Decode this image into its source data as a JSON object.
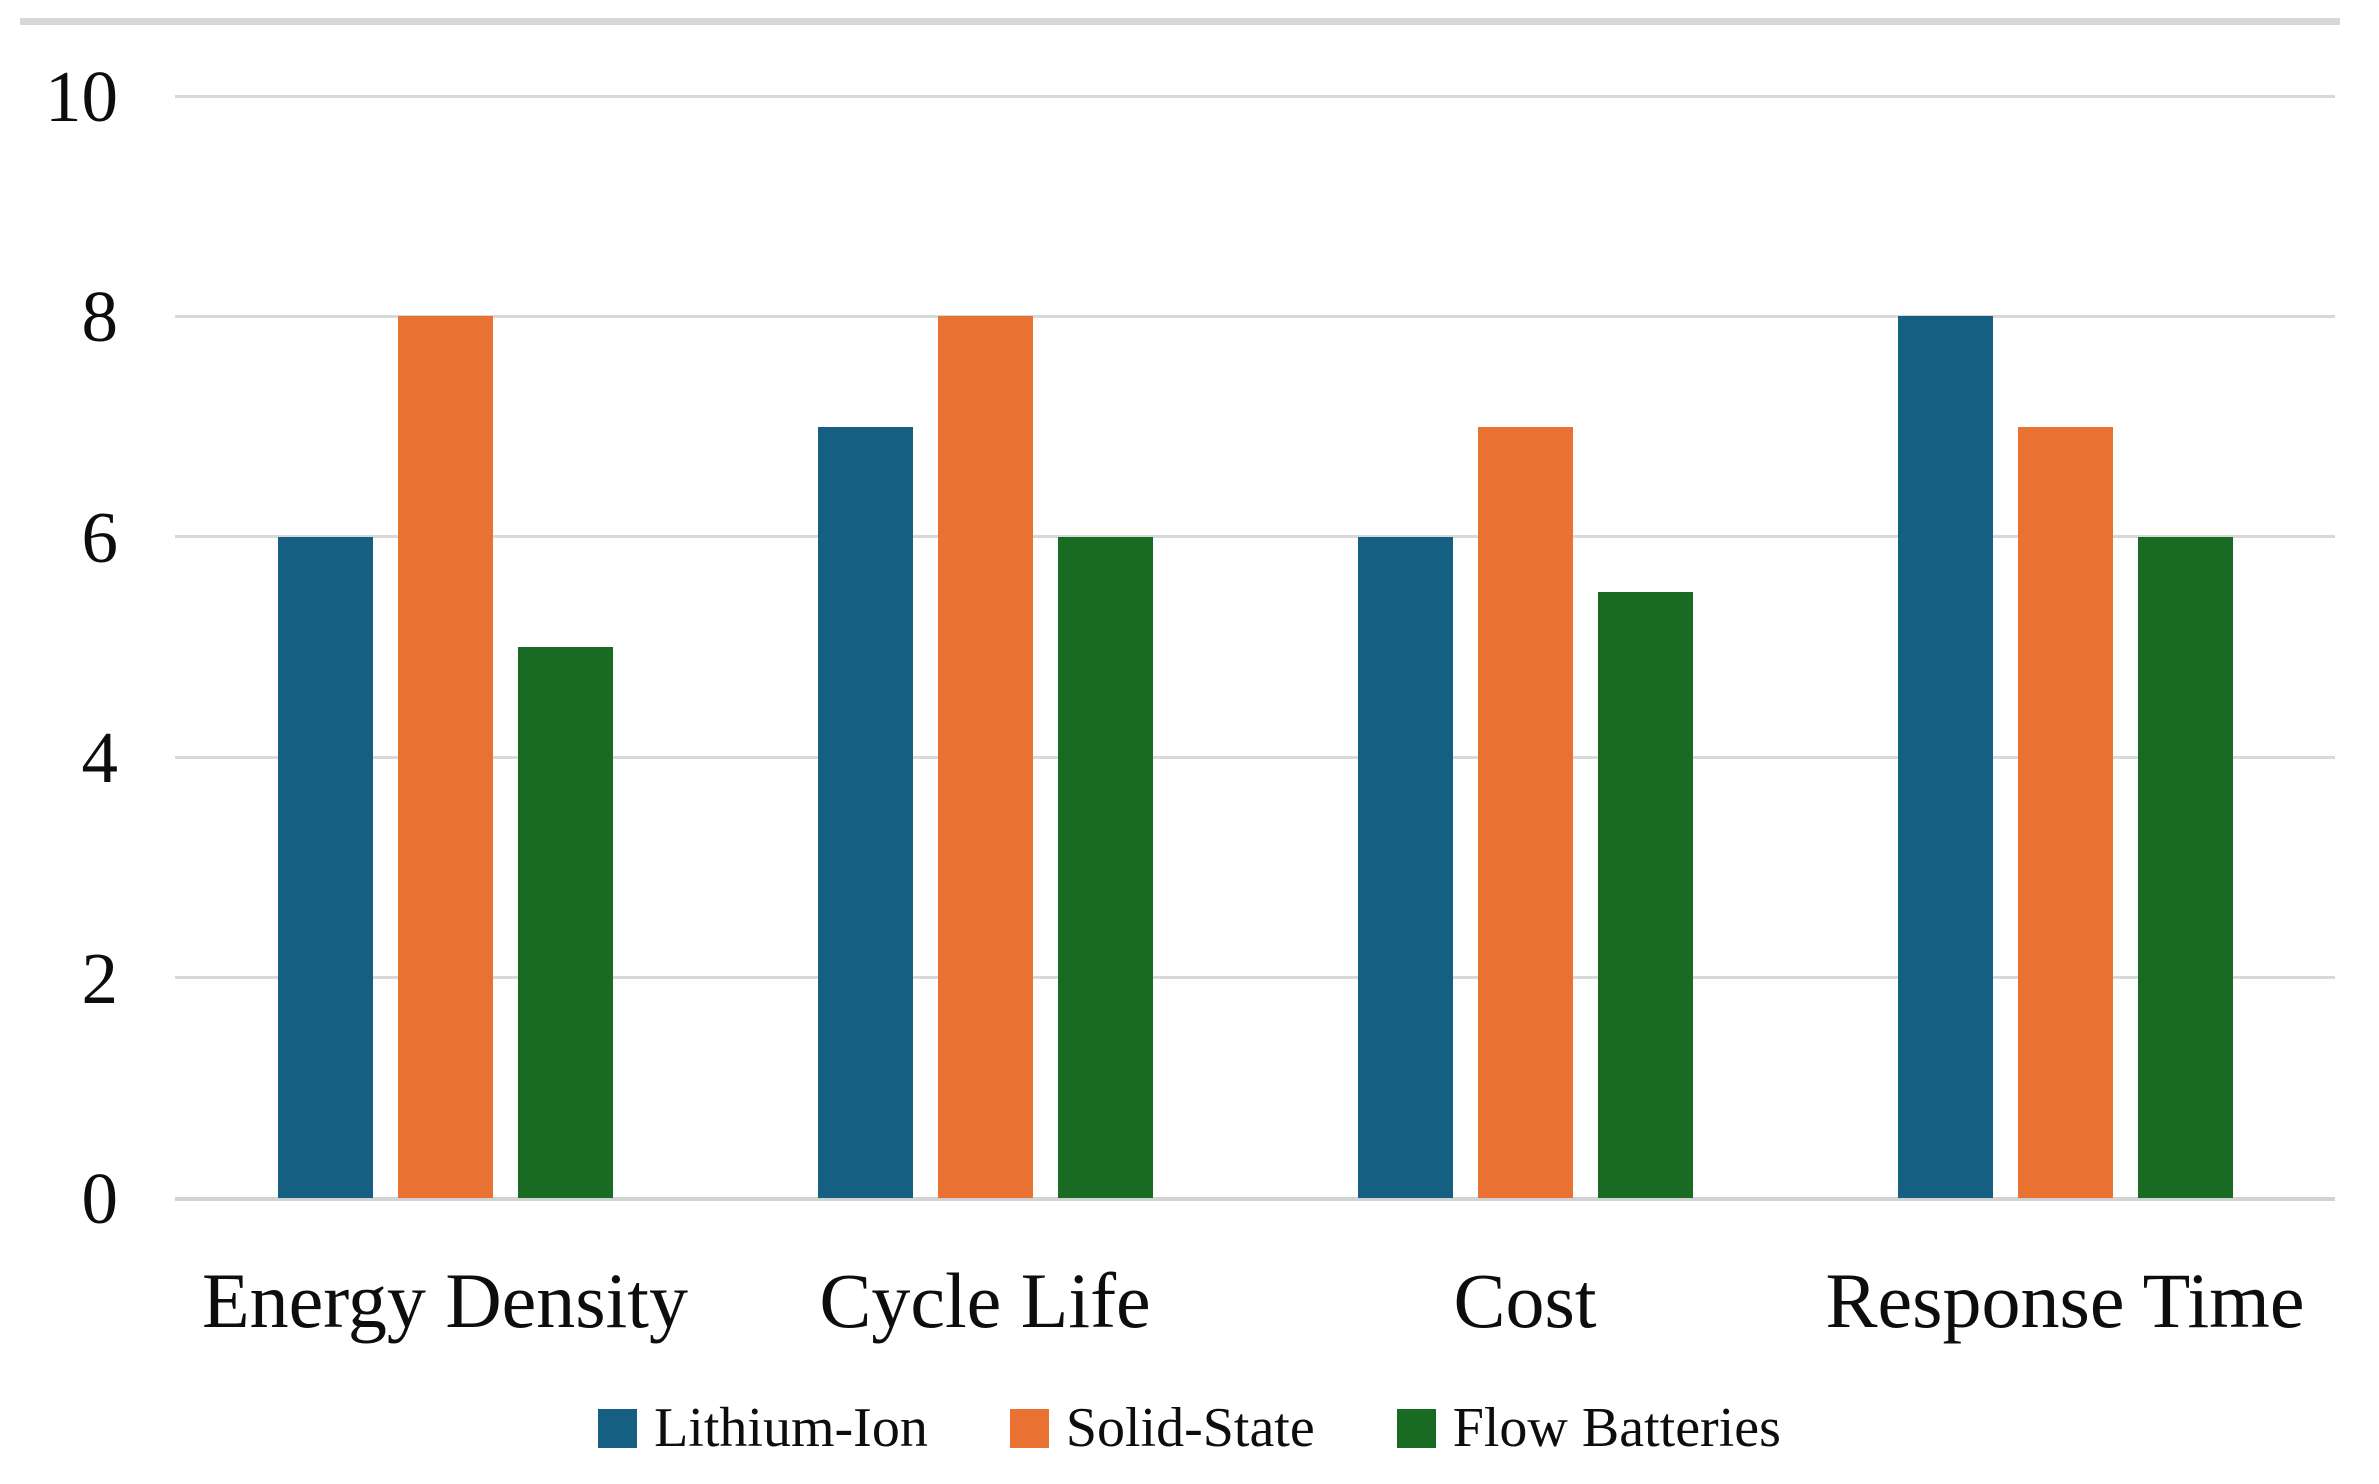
{
  "chart_data": {
    "type": "bar",
    "title": "",
    "xlabel": "",
    "ylabel": "",
    "categories": [
      "Energy Density",
      "Cycle Life",
      "Cost",
      "Response Time"
    ],
    "series": [
      {
        "name": "Lithium-Ion",
        "color": "#156082",
        "values": [
          6,
          7,
          6,
          8
        ]
      },
      {
        "name": "Solid-State",
        "color": "#E97132",
        "values": [
          8,
          8,
          7,
          7
        ]
      },
      {
        "name": "Flow Batteries",
        "color": "#196B24",
        "values": [
          5,
          6,
          5.5,
          6
        ]
      }
    ],
    "yticks": [
      0,
      2,
      4,
      6,
      8,
      10
    ],
    "ytick_labels": [
      "0",
      "2",
      "4",
      "6",
      "8",
      "10"
    ],
    "ylim": [
      0,
      10
    ],
    "grid": true,
    "gridline_color": "#d9d9d9",
    "legend_position": "bottom",
    "legend_labels": [
      "Lithium-Ion",
      "Solid-State",
      "Flow Batteries"
    ]
  },
  "figure": {
    "background": "#ffffff",
    "top_border_color": "#d7d7d7",
    "text_color": "#0d0d0d"
  }
}
